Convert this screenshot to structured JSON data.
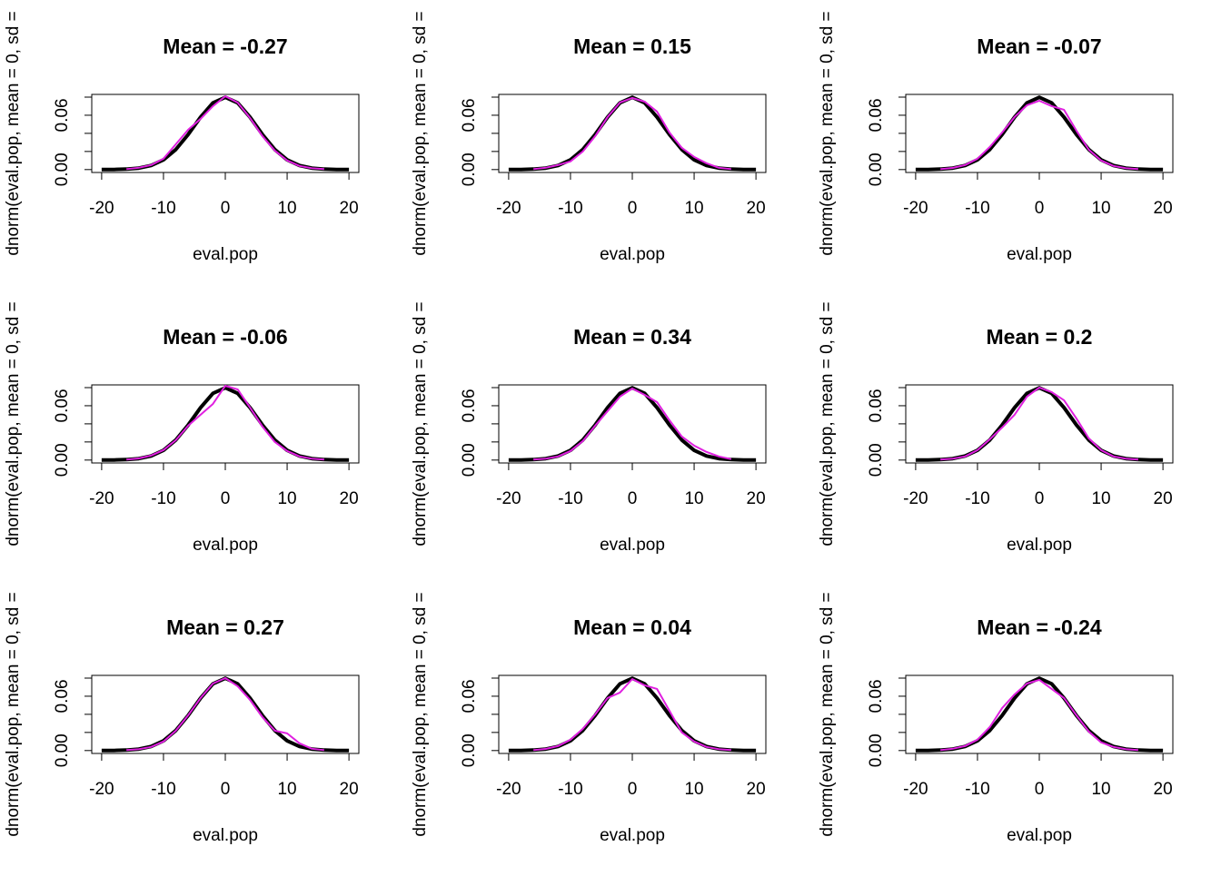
{
  "chart_data": [
    {
      "type": "line",
      "title": "Mean =  -0.27",
      "xlabel": "eval.pop",
      "ylabel": "dnorm(eval.pop, mean = 0, sd =",
      "xlim": [
        -21.6,
        21.6
      ],
      "ylim": [
        -0.0032,
        0.083
      ],
      "xticks": [
        -20,
        -10,
        0,
        10,
        20
      ],
      "yticks": [
        {
          "value": 0,
          "label": "0.00"
        },
        {
          "value": 0.02,
          "label": null
        },
        {
          "value": 0.04,
          "label": null
        },
        {
          "value": 0.06,
          "label": "0.06"
        },
        {
          "value": 0.08,
          "label": null
        }
      ],
      "x": [
        -20,
        -18,
        -16,
        -14,
        -12,
        -10,
        -8,
        -6,
        -4,
        -2,
        0,
        2,
        4,
        6,
        8,
        10,
        12,
        14,
        16,
        18,
        20
      ],
      "series": [
        {
          "color": "#000000",
          "values": [
            0,
            0.0001,
            0.0005,
            0.0016,
            0.0045,
            0.0108,
            0.0222,
            0.0388,
            0.0579,
            0.0737,
            0.0798,
            0.0737,
            0.0579,
            0.0388,
            0.0222,
            0.0108,
            0.0045,
            0.0016,
            0.0005,
            0.0001,
            0
          ]
        },
        {
          "color": "#e020e0",
          "values": [
            null,
            null,
            0.0005,
            0.002,
            0.005,
            0.012,
            0.028,
            0.044,
            0.056,
            0.07,
            0.081,
            0.074,
            0.057,
            0.037,
            0.021,
            0.01,
            0.004,
            0.0015,
            0.0005,
            null,
            null
          ]
        }
      ]
    },
    {
      "type": "line",
      "title": "Mean =  0.15",
      "xlabel": "eval.pop",
      "ylabel": "dnorm(eval.pop, mean = 0, sd =",
      "xlim": [
        -21.6,
        21.6
      ],
      "ylim": [
        -0.0032,
        0.083
      ],
      "xticks": [
        -20,
        -10,
        0,
        10,
        20
      ],
      "yticks": [
        {
          "value": 0,
          "label": "0.00"
        },
        {
          "value": 0.02,
          "label": null
        },
        {
          "value": 0.04,
          "label": null
        },
        {
          "value": 0.06,
          "label": "0.06"
        },
        {
          "value": 0.08,
          "label": null
        }
      ],
      "x": [
        -20,
        -18,
        -16,
        -14,
        -12,
        -10,
        -8,
        -6,
        -4,
        -2,
        0,
        2,
        4,
        6,
        8,
        10,
        12,
        14,
        16,
        18,
        20
      ],
      "series": [
        {
          "color": "#000000",
          "values": [
            0,
            0.0001,
            0.0005,
            0.0016,
            0.0045,
            0.0108,
            0.0222,
            0.0388,
            0.0579,
            0.0737,
            0.0798,
            0.0737,
            0.0579,
            0.0388,
            0.0222,
            0.0108,
            0.0045,
            0.0016,
            0.0005,
            0.0001,
            0
          ]
        },
        {
          "color": "#e020e0",
          "values": [
            null,
            null,
            0.0005,
            0.002,
            0.005,
            0.009,
            0.02,
            0.037,
            0.058,
            0.074,
            0.079,
            0.075,
            0.064,
            0.041,
            0.024,
            0.014,
            0.007,
            0.002,
            0.0005,
            null,
            null
          ]
        }
      ]
    },
    {
      "type": "line",
      "title": "Mean =  -0.07",
      "xlabel": "eval.pop",
      "ylabel": "dnorm(eval.pop, mean = 0, sd =",
      "xlim": [
        -21.6,
        21.6
      ],
      "ylim": [
        -0.0032,
        0.083
      ],
      "xticks": [
        -20,
        -10,
        0,
        10,
        20
      ],
      "yticks": [
        {
          "value": 0,
          "label": "0.00"
        },
        {
          "value": 0.02,
          "label": null
        },
        {
          "value": 0.04,
          "label": null
        },
        {
          "value": 0.06,
          "label": "0.06"
        },
        {
          "value": 0.08,
          "label": null
        }
      ],
      "x": [
        -20,
        -18,
        -16,
        -14,
        -12,
        -10,
        -8,
        -6,
        -4,
        -2,
        0,
        2,
        4,
        6,
        8,
        10,
        12,
        14,
        16,
        18,
        20
      ],
      "series": [
        {
          "color": "#000000",
          "values": [
            0,
            0.0001,
            0.0005,
            0.0016,
            0.0045,
            0.0108,
            0.0222,
            0.0388,
            0.0579,
            0.0737,
            0.0798,
            0.0737,
            0.0579,
            0.0388,
            0.0222,
            0.0108,
            0.0045,
            0.0016,
            0.0005,
            0.0001,
            0
          ]
        },
        {
          "color": "#e020e0",
          "values": [
            null,
            null,
            0.0005,
            0.0018,
            0.005,
            0.012,
            0.025,
            0.041,
            0.058,
            0.071,
            0.076,
            0.07,
            0.066,
            0.043,
            0.022,
            0.01,
            0.004,
            0.0015,
            0.0005,
            null,
            null
          ]
        }
      ]
    },
    {
      "type": "line",
      "title": "Mean =  -0.06",
      "xlabel": "eval.pop",
      "ylabel": "dnorm(eval.pop, mean = 0, sd =",
      "xlim": [
        -21.6,
        21.6
      ],
      "ylim": [
        -0.0032,
        0.083
      ],
      "xticks": [
        -20,
        -10,
        0,
        10,
        20
      ],
      "yticks": [
        {
          "value": 0,
          "label": "0.00"
        },
        {
          "value": 0.02,
          "label": null
        },
        {
          "value": 0.04,
          "label": null
        },
        {
          "value": 0.06,
          "label": "0.06"
        },
        {
          "value": 0.08,
          "label": null
        }
      ],
      "x": [
        -20,
        -18,
        -16,
        -14,
        -12,
        -10,
        -8,
        -6,
        -4,
        -2,
        0,
        2,
        4,
        6,
        8,
        10,
        12,
        14,
        16,
        18,
        20
      ],
      "series": [
        {
          "color": "#000000",
          "values": [
            0,
            0.0001,
            0.0005,
            0.0016,
            0.0045,
            0.0108,
            0.0222,
            0.0388,
            0.0579,
            0.0737,
            0.0798,
            0.0737,
            0.0579,
            0.0388,
            0.0222,
            0.0108,
            0.0045,
            0.0016,
            0.0005,
            0.0001,
            0
          ]
        },
        {
          "color": "#e020e0",
          "values": [
            null,
            null,
            0.0005,
            0.0018,
            0.005,
            0.011,
            0.022,
            0.038,
            0.05,
            0.062,
            0.082,
            0.078,
            0.058,
            0.037,
            0.02,
            0.01,
            0.004,
            0.0015,
            0.0005,
            null,
            null
          ]
        }
      ]
    },
    {
      "type": "line",
      "title": "Mean =  0.34",
      "xlabel": "eval.pop",
      "ylabel": "dnorm(eval.pop, mean = 0, sd =",
      "xlim": [
        -21.6,
        21.6
      ],
      "ylim": [
        -0.0032,
        0.083
      ],
      "xticks": [
        -20,
        -10,
        0,
        10,
        20
      ],
      "yticks": [
        {
          "value": 0,
          "label": "0.00"
        },
        {
          "value": 0.02,
          "label": null
        },
        {
          "value": 0.04,
          "label": null
        },
        {
          "value": 0.06,
          "label": "0.06"
        },
        {
          "value": 0.08,
          "label": null
        }
      ],
      "x": [
        -20,
        -18,
        -16,
        -14,
        -12,
        -10,
        -8,
        -6,
        -4,
        -2,
        0,
        2,
        4,
        6,
        8,
        10,
        12,
        14,
        16,
        18,
        20
      ],
      "series": [
        {
          "color": "#000000",
          "values": [
            0,
            0.0001,
            0.0005,
            0.0016,
            0.0045,
            0.0108,
            0.0222,
            0.0388,
            0.0579,
            0.0737,
            0.0798,
            0.0737,
            0.0579,
            0.0388,
            0.0222,
            0.0108,
            0.0045,
            0.0016,
            0.0005,
            0.0001,
            0
          ]
        },
        {
          "color": "#e020e0",
          "values": [
            null,
            null,
            0.0005,
            0.0015,
            0.004,
            0.01,
            0.021,
            0.038,
            0.054,
            0.07,
            0.079,
            0.072,
            0.064,
            0.044,
            0.026,
            0.016,
            0.009,
            0.004,
            0.001,
            null,
            null
          ]
        }
      ]
    },
    {
      "type": "line",
      "title": "Mean =  0.2",
      "xlabel": "eval.pop",
      "ylabel": "dnorm(eval.pop, mean = 0, sd =",
      "xlim": [
        -21.6,
        21.6
      ],
      "ylim": [
        -0.0032,
        0.083
      ],
      "xticks": [
        -20,
        -10,
        0,
        10,
        20
      ],
      "yticks": [
        {
          "value": 0,
          "label": "0.00"
        },
        {
          "value": 0.02,
          "label": null
        },
        {
          "value": 0.04,
          "label": null
        },
        {
          "value": 0.06,
          "label": "0.06"
        },
        {
          "value": 0.08,
          "label": null
        }
      ],
      "x": [
        -20,
        -18,
        -16,
        -14,
        -12,
        -10,
        -8,
        -6,
        -4,
        -2,
        0,
        2,
        4,
        6,
        8,
        10,
        12,
        14,
        16,
        18,
        20
      ],
      "series": [
        {
          "color": "#000000",
          "values": [
            0,
            0.0001,
            0.0005,
            0.0016,
            0.0045,
            0.0108,
            0.0222,
            0.0388,
            0.0579,
            0.0737,
            0.0798,
            0.0737,
            0.0579,
            0.0388,
            0.0222,
            0.0108,
            0.0045,
            0.0016,
            0.0005,
            0.0001,
            0
          ]
        },
        {
          "color": "#e020e0",
          "values": [
            null,
            null,
            0.0005,
            0.0015,
            0.004,
            0.011,
            0.023,
            0.036,
            0.05,
            0.07,
            0.08,
            0.075,
            0.066,
            0.046,
            0.024,
            0.011,
            0.004,
            0.0015,
            0.0005,
            null,
            null
          ]
        }
      ]
    },
    {
      "type": "line",
      "title": "Mean =  0.27",
      "xlabel": "eval.pop",
      "ylabel": "dnorm(eval.pop, mean = 0, sd =",
      "xlim": [
        -21.6,
        21.6
      ],
      "ylim": [
        -0.0032,
        0.083
      ],
      "xticks": [
        -20,
        -10,
        0,
        10,
        20
      ],
      "yticks": [
        {
          "value": 0,
          "label": "0.00"
        },
        {
          "value": 0.02,
          "label": null
        },
        {
          "value": 0.04,
          "label": null
        },
        {
          "value": 0.06,
          "label": "0.06"
        },
        {
          "value": 0.08,
          "label": null
        }
      ],
      "x": [
        -20,
        -18,
        -16,
        -14,
        -12,
        -10,
        -8,
        -6,
        -4,
        -2,
        0,
        2,
        4,
        6,
        8,
        10,
        12,
        14,
        16,
        18,
        20
      ],
      "series": [
        {
          "color": "#000000",
          "values": [
            0,
            0.0001,
            0.0005,
            0.0016,
            0.0045,
            0.0108,
            0.0222,
            0.0388,
            0.0579,
            0.0737,
            0.0798,
            0.0737,
            0.0579,
            0.0388,
            0.0222,
            0.0108,
            0.0045,
            0.0016,
            0.0005,
            0.0001,
            0
          ]
        },
        {
          "color": "#e020e0",
          "values": [
            null,
            null,
            0.0005,
            0.0015,
            0.004,
            0.01,
            0.022,
            0.039,
            0.058,
            0.074,
            0.08,
            0.071,
            0.056,
            0.037,
            0.022,
            0.019,
            0.008,
            0.002,
            0.0005,
            null,
            null
          ]
        }
      ]
    },
    {
      "type": "line",
      "title": "Mean =  0.04",
      "xlabel": "eval.pop",
      "ylabel": "dnorm(eval.pop, mean = 0, sd =",
      "xlim": [
        -21.6,
        21.6
      ],
      "ylim": [
        -0.0032,
        0.083
      ],
      "xticks": [
        -20,
        -10,
        0,
        10,
        20
      ],
      "yticks": [
        {
          "value": 0,
          "label": "0.00"
        },
        {
          "value": 0.02,
          "label": null
        },
        {
          "value": 0.04,
          "label": null
        },
        {
          "value": 0.06,
          "label": "0.06"
        },
        {
          "value": 0.08,
          "label": null
        }
      ],
      "x": [
        -20,
        -18,
        -16,
        -14,
        -12,
        -10,
        -8,
        -6,
        -4,
        -2,
        0,
        2,
        4,
        6,
        8,
        10,
        12,
        14,
        16,
        18,
        20
      ],
      "series": [
        {
          "color": "#000000",
          "values": [
            0,
            0.0001,
            0.0005,
            0.0016,
            0.0045,
            0.0108,
            0.0222,
            0.0388,
            0.0579,
            0.0737,
            0.0798,
            0.0737,
            0.0579,
            0.0388,
            0.0222,
            0.0108,
            0.0045,
            0.0016,
            0.0005,
            0.0001,
            0
          ]
        },
        {
          "color": "#e020e0",
          "values": [
            null,
            null,
            0.0005,
            0.0018,
            0.005,
            0.012,
            0.024,
            0.04,
            0.058,
            0.064,
            0.079,
            0.072,
            0.068,
            0.044,
            0.02,
            0.01,
            0.004,
            0.0015,
            0.0005,
            null,
            null
          ]
        }
      ]
    },
    {
      "type": "line",
      "title": "Mean =  -0.24",
      "xlabel": "eval.pop",
      "ylabel": "dnorm(eval.pop, mean = 0, sd =",
      "xlim": [
        -21.6,
        21.6
      ],
      "ylim": [
        -0.0032,
        0.083
      ],
      "xticks": [
        -20,
        -10,
        0,
        10,
        20
      ],
      "yticks": [
        {
          "value": 0,
          "label": "0.00"
        },
        {
          "value": 0.02,
          "label": null
        },
        {
          "value": 0.04,
          "label": null
        },
        {
          "value": 0.06,
          "label": "0.06"
        },
        {
          "value": 0.08,
          "label": null
        }
      ],
      "x": [
        -20,
        -18,
        -16,
        -14,
        -12,
        -10,
        -8,
        -6,
        -4,
        -2,
        0,
        2,
        4,
        6,
        8,
        10,
        12,
        14,
        16,
        18,
        20
      ],
      "series": [
        {
          "color": "#000000",
          "values": [
            0,
            0.0001,
            0.0005,
            0.0016,
            0.0045,
            0.0108,
            0.0222,
            0.0388,
            0.0579,
            0.0737,
            0.0798,
            0.0737,
            0.0579,
            0.0388,
            0.0222,
            0.0108,
            0.0045,
            0.0016,
            0.0005,
            0.0001,
            0
          ]
        },
        {
          "color": "#e020e0",
          "values": [
            null,
            null,
            0.0005,
            0.002,
            0.005,
            0.012,
            0.026,
            0.047,
            0.062,
            0.074,
            0.078,
            0.068,
            0.058,
            0.039,
            0.021,
            0.009,
            0.004,
            0.0015,
            0.0005,
            null,
            null
          ]
        }
      ]
    }
  ]
}
